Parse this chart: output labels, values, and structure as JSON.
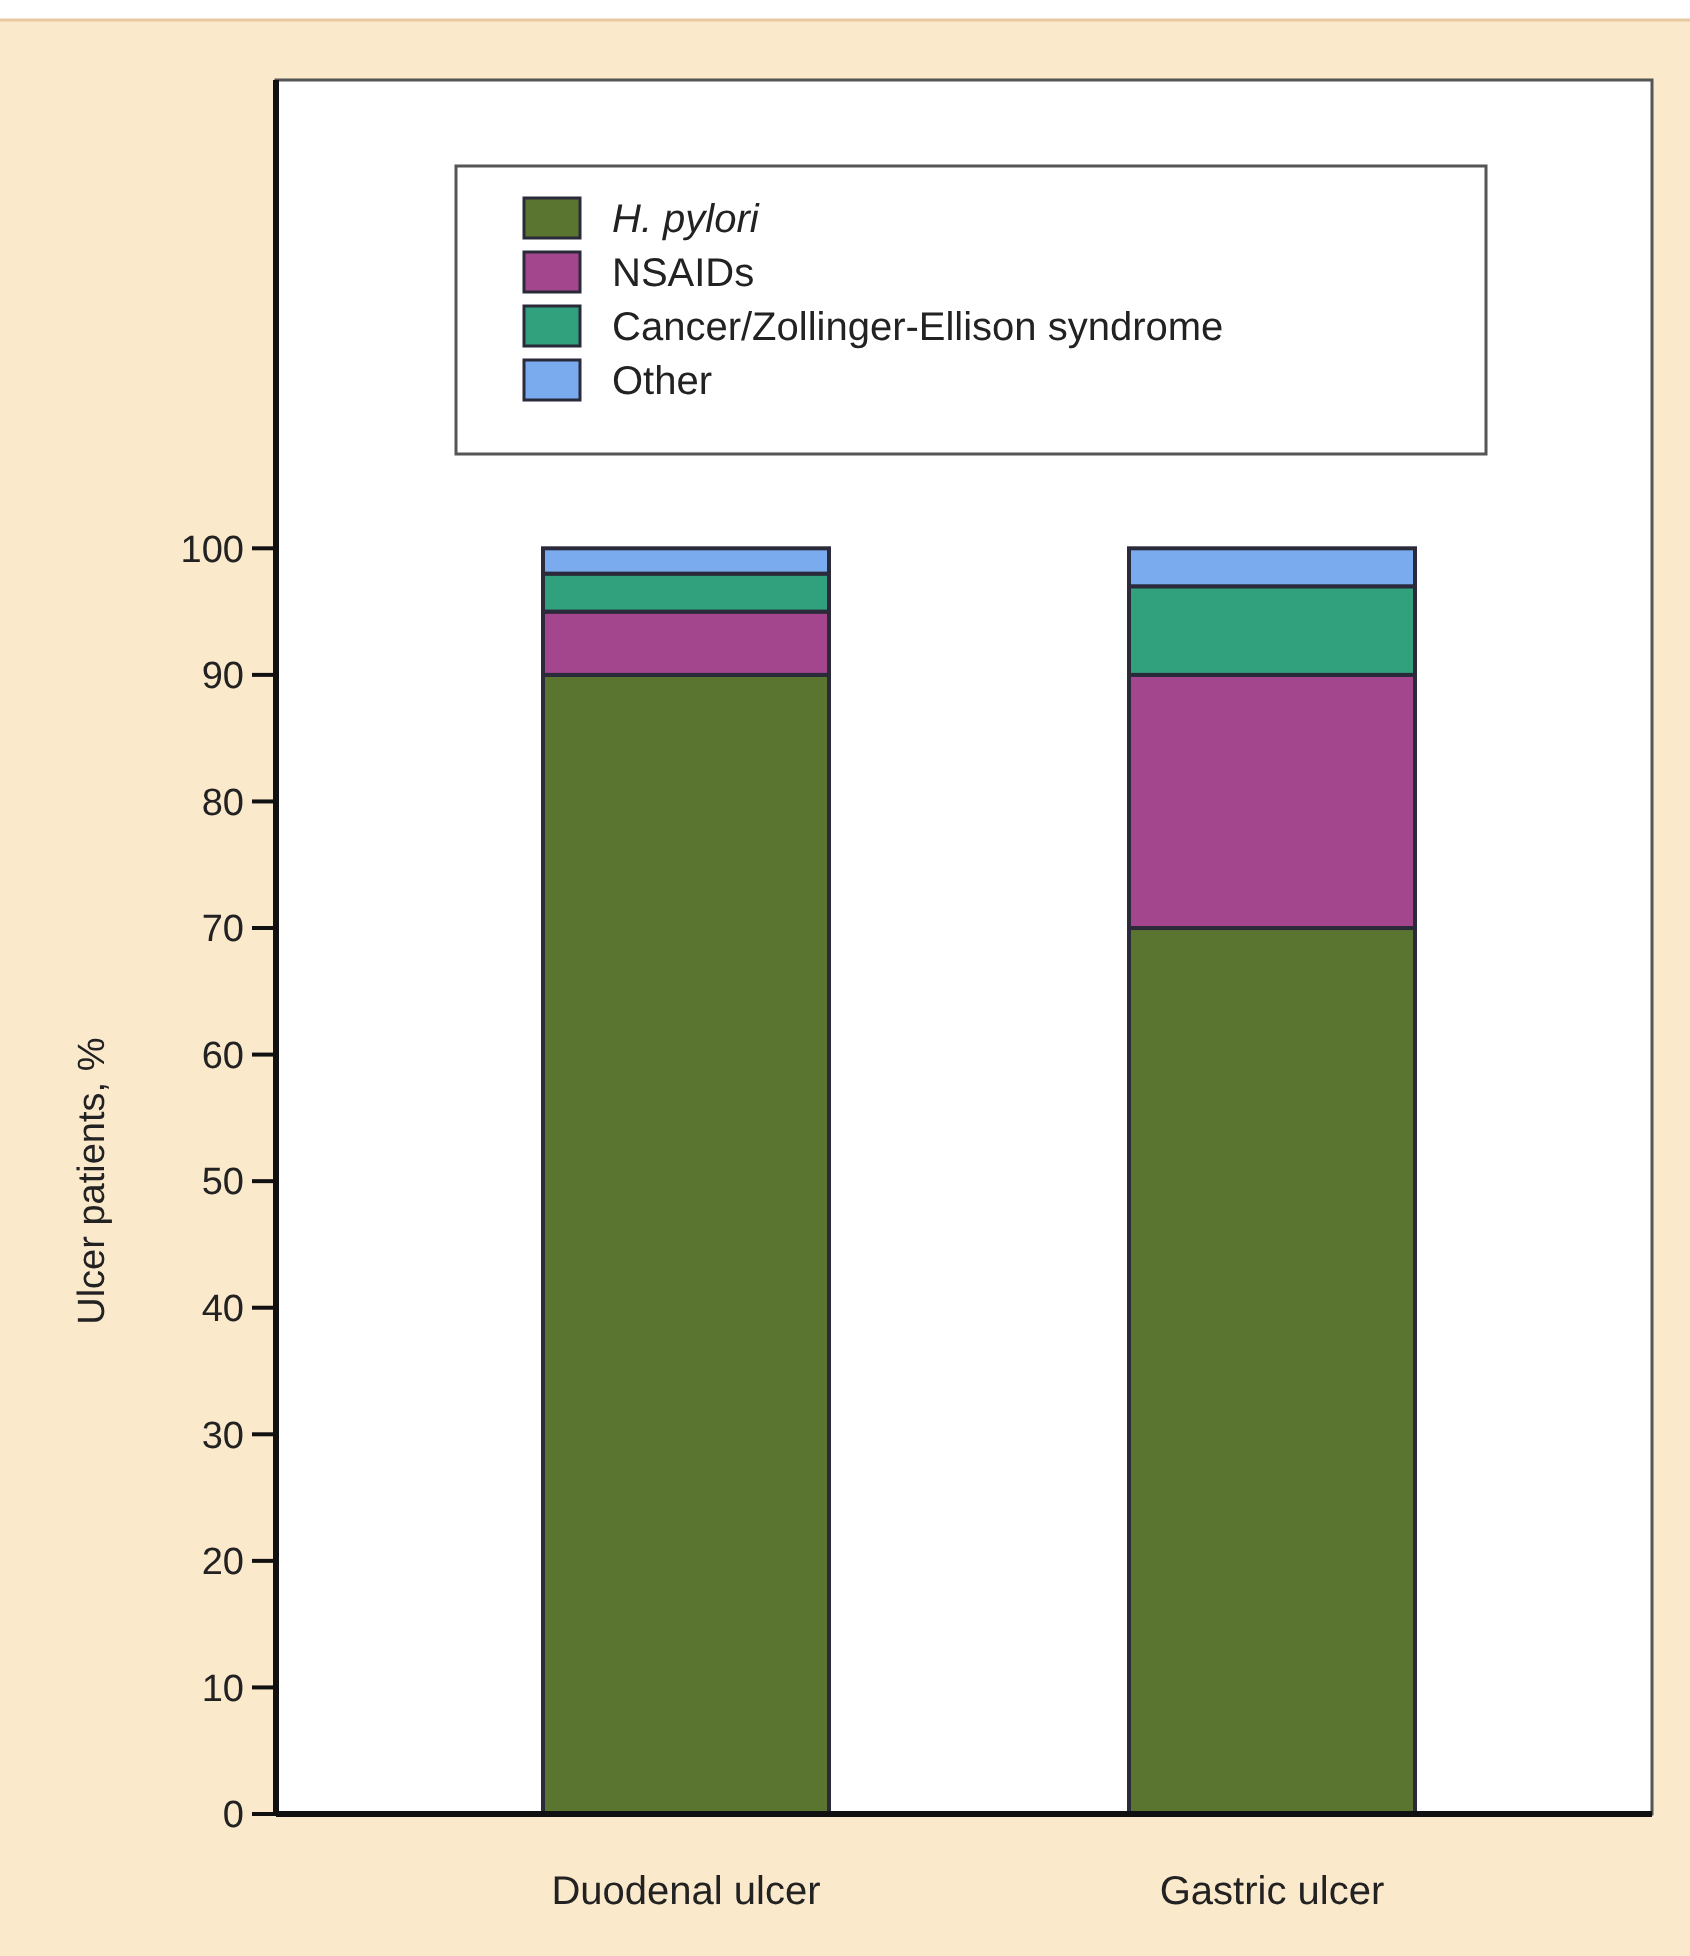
{
  "chart_data": {
    "type": "bar",
    "ylabel": "Ulcer patients, %",
    "categories": [
      "Duodenal ulcer",
      "Gastric ulcer"
    ],
    "stacked": true,
    "legend": "top",
    "ylim": [
      0,
      137
    ],
    "yticks": [
      0,
      10,
      20,
      30,
      40,
      50,
      60,
      70,
      80,
      90,
      100
    ],
    "series": [
      {
        "name": "H. pylori",
        "color": "#5a7530",
        "values": [
          90,
          70
        ]
      },
      {
        "name": "NSAIDs",
        "color": "#a3468e",
        "values": [
          5,
          20
        ]
      },
      {
        "name": "Cancer/Zollinger-Ellison syndrome",
        "color": "#31a07c",
        "values": [
          3,
          7
        ]
      },
      {
        "name": "Other",
        "color": "#7aabee",
        "values": [
          2,
          3
        ]
      }
    ]
  }
}
